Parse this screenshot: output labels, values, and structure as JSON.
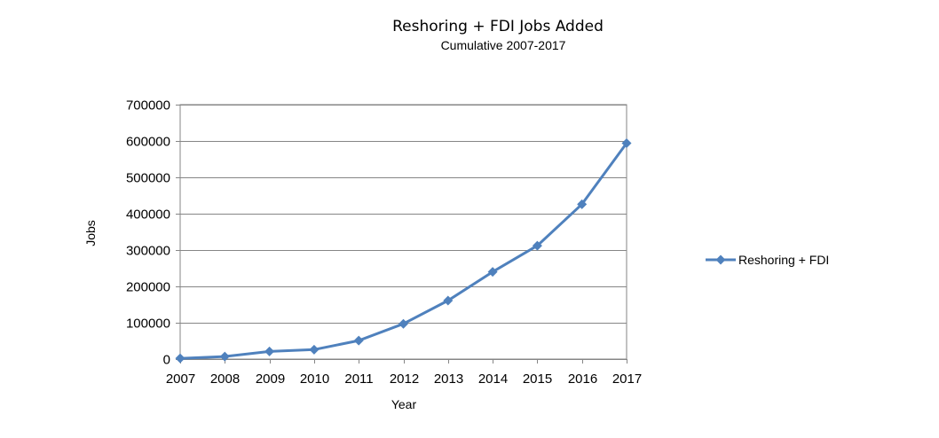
{
  "chart_data": {
    "type": "line",
    "title": "Reshoring + FDI Jobs Added",
    "subtitle": "Cumulative 2007-2017",
    "xlabel": "Year",
    "ylabel": "Jobs",
    "categories": [
      "2007",
      "2008",
      "2009",
      "2010",
      "2011",
      "2012",
      "2013",
      "2014",
      "2015",
      "2016",
      "2017"
    ],
    "y_ticks": [
      "0",
      "100000",
      "200000",
      "300000",
      "400000",
      "500000",
      "600000",
      "700000"
    ],
    "ylim": [
      0,
      700000
    ],
    "grid": true,
    "legend_position": "right",
    "series": [
      {
        "name": "Reshoring + FDI",
        "color": "#4f81bd",
        "marker": "diamond",
        "values": [
          2000,
          7000,
          21000,
          26000,
          51000,
          97000,
          161000,
          240000,
          312000,
          426000,
          594000
        ]
      }
    ]
  }
}
